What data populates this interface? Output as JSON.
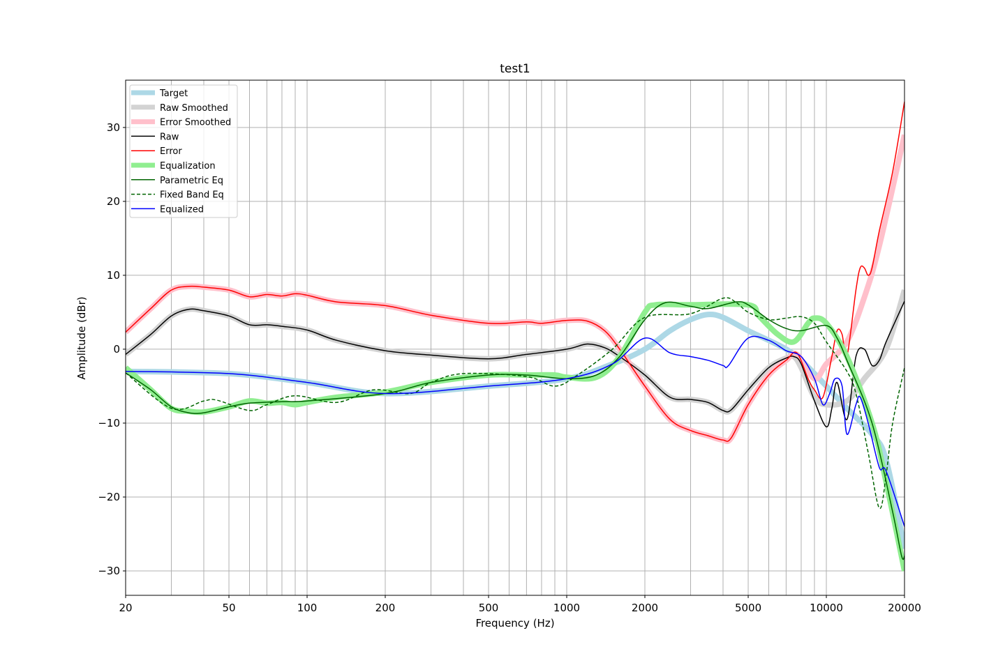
{
  "chart_data": {
    "type": "line",
    "title": "test1",
    "xlabel": "Frequency (Hz)",
    "ylabel": "Amplitude (dBr)",
    "xscale": "log",
    "xlim": [
      20,
      20000
    ],
    "ylim": [
      -33.3,
      36.4
    ],
    "xticks": [
      20,
      50,
      100,
      200,
      500,
      1000,
      2000,
      5000,
      10000,
      20000
    ],
    "xtick_labels": [
      "20",
      "50",
      "100",
      "200",
      "500",
      "1000",
      "2000",
      "5000",
      "10000",
      "20000"
    ],
    "yticks": [
      -30,
      -20,
      -10,
      0,
      10,
      20,
      30
    ],
    "ytick_labels": [
      "−30",
      "−20",
      "−10",
      "0",
      "10",
      "20",
      "30"
    ],
    "grid": true,
    "legend_position": "top-left",
    "series": [
      {
        "name": "Target",
        "color": "#add8e6",
        "width": "thick",
        "style": "solid",
        "x": [
          20,
          50,
          100,
          200,
          500,
          1000,
          1500,
          2000,
          2500,
          3000,
          3500,
          4000,
          5000,
          6000,
          7000,
          8000,
          10000,
          12000,
          15000,
          17000,
          20000
        ],
        "y": [
          -3,
          -3.3,
          -4.5,
          -6,
          -5,
          -4,
          -2,
          0,
          2.5,
          4,
          4.7,
          4.3,
          2.5,
          1.2,
          0,
          -1.5,
          -5,
          -8,
          -11.5,
          -15,
          -27
        ]
      },
      {
        "name": "Raw Smoothed",
        "color": "#d3d3d3",
        "width": "thick",
        "style": "solid",
        "x": [
          20,
          25,
          30,
          35,
          40,
          50,
          60,
          70,
          80,
          100,
          130,
          200,
          300,
          500,
          700,
          1000,
          1200,
          1400,
          1600,
          2000,
          2500,
          3000,
          3500,
          4000,
          4300,
          5000,
          6000,
          7000,
          7500,
          8000,
          9000,
          10000,
          12000,
          14000,
          17000,
          20000
        ],
        "y": [
          -0.7,
          2,
          4.5,
          5.4,
          5.2,
          4.5,
          3.3,
          3.3,
          3.1,
          2.6,
          1.2,
          -0.2,
          -0.8,
          -1.3,
          -0.7,
          0,
          0.7,
          0.2,
          -1,
          -3.5,
          -6.5,
          -6.8,
          -7.2,
          -8.3,
          -8.2,
          -5.5,
          -2.5,
          -1.2,
          -1,
          -2.5,
          -6.5,
          -7.5,
          -7,
          -4,
          0,
          8
        ]
      },
      {
        "name": "Error Smoothed",
        "color": "#ffc0cb",
        "width": "thick",
        "style": "solid",
        "x": [
          20,
          25,
          30,
          35,
          40,
          50,
          60,
          70,
          80,
          90,
          100,
          130,
          200,
          300,
          500,
          700,
          800,
          1000,
          1200,
          1400,
          1600,
          2000,
          2500,
          3000,
          3500,
          4000,
          4300,
          5000,
          6000,
          7000,
          7700,
          9000,
          10000,
          12000,
          14000,
          16000,
          20000
        ],
        "y": [
          2.3,
          5.5,
          8,
          8.5,
          8.4,
          8,
          7.1,
          7.4,
          7.2,
          7.5,
          7.3,
          6.4,
          5.9,
          4.6,
          3.5,
          3.7,
          3.5,
          3.9,
          3.8,
          2.5,
          0,
          -5,
          -9.5,
          -11,
          -11.7,
          -12.3,
          -12,
          -7.5,
          -3.5,
          -1.5,
          -0.7,
          -4,
          -2,
          1,
          7,
          14,
          29
        ]
      },
      {
        "name": "Raw",
        "color": "#000000",
        "width": "thin",
        "style": "solid",
        "x": [
          20,
          25,
          30,
          35,
          40,
          50,
          60,
          70,
          80,
          100,
          130,
          200,
          300,
          500,
          700,
          1000,
          1200,
          1400,
          1600,
          2000,
          2500,
          3000,
          3500,
          4000,
          4300,
          5000,
          6000,
          7000,
          7500,
          8000,
          9000,
          10000,
          10500,
          11000,
          12000,
          13000,
          14000,
          15000,
          16000,
          17000,
          20000
        ],
        "y": [
          -0.7,
          2,
          4.5,
          5.4,
          5.2,
          4.5,
          3.3,
          3.3,
          3.1,
          2.6,
          1.2,
          -0.2,
          -0.8,
          -1.3,
          -0.7,
          0,
          0.7,
          0.2,
          -1,
          -3.5,
          -6.5,
          -6.8,
          -7.2,
          -8.3,
          -8.2,
          -5.5,
          -2.5,
          -1.2,
          -1,
          -2,
          -7,
          -10.5,
          -8,
          -4.5,
          -9.5,
          -1,
          0,
          -2.2,
          -1.5,
          1,
          6.5
        ]
      },
      {
        "name": "Error",
        "color": "#ff0000",
        "width": "thin",
        "style": "solid",
        "x": [
          20,
          25,
          30,
          35,
          40,
          50,
          60,
          70,
          80,
          90,
          100,
          130,
          200,
          300,
          500,
          700,
          800,
          1000,
          1200,
          1400,
          1600,
          2000,
          2500,
          3000,
          3500,
          4000,
          4300,
          5000,
          6000,
          7000,
          7700,
          8500,
          9000,
          9700,
          10500,
          11000,
          11500,
          12000,
          13000,
          13500,
          14000,
          14500,
          15000,
          16000,
          18000,
          20000
        ],
        "y": [
          2.3,
          5.5,
          8,
          8.5,
          8.4,
          8,
          7.1,
          7.4,
          7.2,
          7.5,
          7.3,
          6.4,
          5.9,
          4.6,
          3.5,
          3.7,
          3.5,
          3.9,
          3.8,
          2.5,
          0,
          -5,
          -9.5,
          -11,
          -11.7,
          -12.3,
          -12,
          -7.5,
          -3.5,
          -1.5,
          -0.5,
          -4,
          -5.5,
          -6.5,
          -1,
          2.5,
          2,
          -1,
          8,
          11,
          11,
          10,
          11,
          16,
          24,
          33.5
        ]
      },
      {
        "name": "Equalization",
        "color": "#90ee90",
        "width": "thick",
        "style": "solid",
        "x": [
          20,
          25,
          30,
          35,
          40,
          50,
          60,
          70,
          80,
          90,
          100,
          130,
          200,
          300,
          500,
          700,
          900,
          1000,
          1300,
          1600,
          2000,
          2200,
          3000,
          5000,
          5500,
          6500,
          7500,
          8500,
          9000,
          10000,
          12000,
          15000,
          17000,
          20000
        ],
        "y": [
          -2.5,
          -5.5,
          -8,
          -8.4,
          -8.5,
          -7.8,
          -7,
          -7.3,
          -7.2,
          -7.5,
          -7.2,
          -6.5,
          -5.8,
          -4.5,
          -3.5,
          -3.5,
          -3.5,
          -3.8,
          -3.8,
          -1,
          5,
          6,
          6,
          6,
          4.5,
          2,
          1,
          3.5,
          4.2,
          3.5,
          -1,
          -10,
          -18,
          -30
        ]
      },
      {
        "name": "Parametric Eq",
        "color": "#006400",
        "width": "thin",
        "style": "solid",
        "x": [
          20,
          25,
          30,
          35,
          40,
          50,
          60,
          80,
          100,
          200,
          300,
          500,
          700,
          1000,
          1300,
          1600,
          2000,
          2400,
          3000,
          3500,
          4500,
          5000,
          6000,
          7000,
          8000,
          10000,
          11000,
          12000,
          15000,
          18000,
          19500,
          20000
        ],
        "y": [
          -3.2,
          -5.5,
          -7.8,
          -8.6,
          -8.6,
          -7.8,
          -7.3,
          -7.1,
          -7,
          -6,
          -4.5,
          -3.5,
          -3.5,
          -4,
          -3.5,
          -1,
          4,
          6.3,
          5.8,
          5.5,
          6.4,
          6,
          4,
          2.8,
          2.5,
          3.2,
          1.5,
          -1.5,
          -10,
          -22,
          -28,
          -28
        ]
      },
      {
        "name": "Fixed Band Eq",
        "color": "#006400",
        "width": "thin",
        "style": "dashed",
        "x": [
          20,
          30,
          40,
          45,
          60,
          70,
          90,
          130,
          180,
          250,
          300,
          400,
          700,
          900,
          1100,
          1500,
          2000,
          3000,
          4000,
          4500,
          5000,
          6000,
          7000,
          8000,
          9000,
          10000,
          12000,
          13000,
          14500,
          16000,
          17000,
          18000,
          20000
        ],
        "y": [
          -3.2,
          -8,
          -7,
          -6.9,
          -8.3,
          -7.5,
          -6.3,
          -7.2,
          -5.5,
          -6,
          -4.5,
          -3.3,
          -3.7,
          -5,
          -3.5,
          0,
          4.3,
          4.8,
          6.9,
          6.3,
          5,
          4,
          4.2,
          4.4,
          3.5,
          1,
          -3,
          -6,
          -14,
          -21.5,
          -17,
          -10,
          -2.5
        ]
      },
      {
        "name": "Equalized",
        "color": "#0000ff",
        "width": "thin",
        "style": "solid",
        "x": [
          20,
          50,
          100,
          200,
          500,
          1000,
          1500,
          2000,
          2500,
          3000,
          3500,
          4000,
          4200,
          5000,
          6000,
          7000,
          8000,
          9000,
          9700,
          10300,
          10800,
          11500,
          12000,
          13000,
          13500,
          14500,
          16000,
          17000,
          20000
        ],
        "y": [
          -3,
          -3.3,
          -4.5,
          -6,
          -5,
          -4,
          -2,
          1.5,
          -0.5,
          -1,
          -1.5,
          -2.2,
          -2.2,
          1.5,
          1.2,
          -0.2,
          -1,
          -4,
          -7.5,
          -6,
          -4,
          -5,
          -11.5,
          -7.5,
          -6.5,
          -10,
          -16,
          -16.5,
          -24
        ]
      }
    ]
  }
}
